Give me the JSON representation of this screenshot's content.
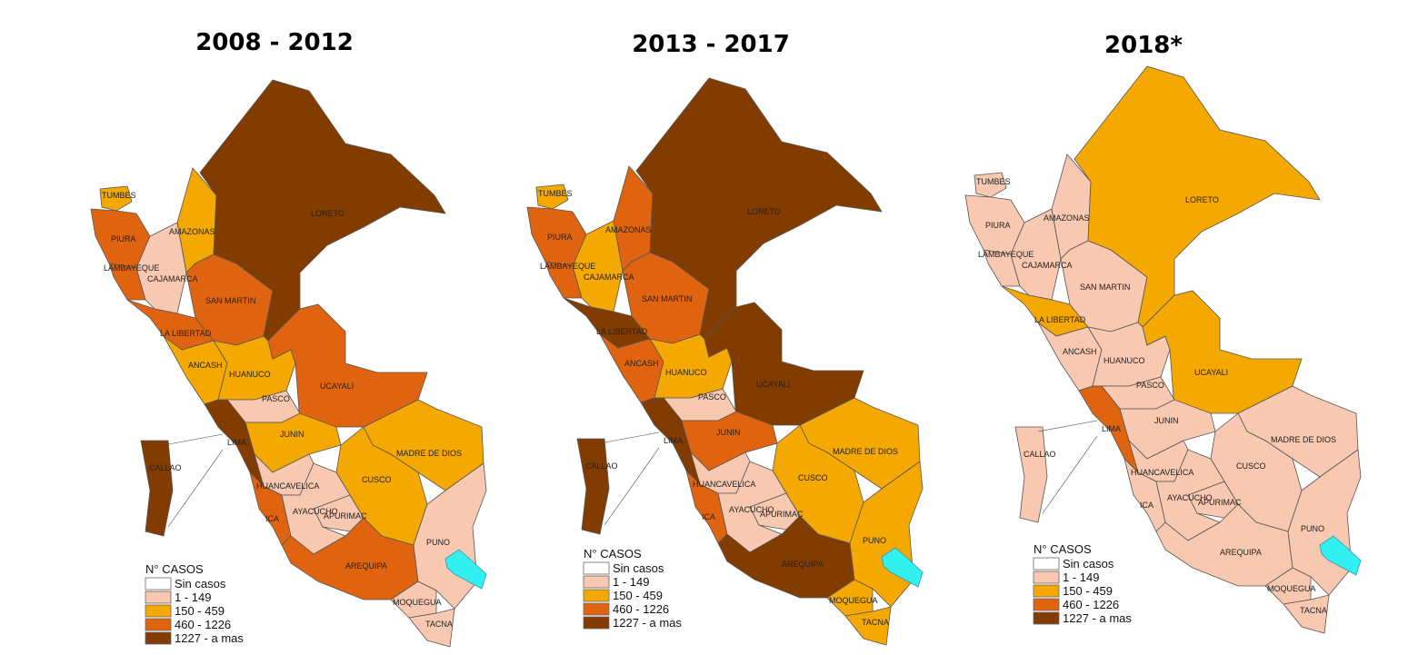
{
  "maps": [
    {
      "title": "2008 - 2012",
      "legend": {
        "title": "N° CASOS",
        "items": [
          {
            "label": "Sin casos",
            "color": "#ffffff"
          },
          {
            "label": "1 - 149",
            "color": "#f8c8b0"
          },
          {
            "label": "150 - 459",
            "color": "#f5a800"
          },
          {
            "label": "460 - 1226",
            "color": "#e0640f"
          },
          {
            "label": "1227 - a mas",
            "color": "#833c00"
          }
        ]
      },
      "regions": [
        {
          "name": "TUMBES",
          "color": "#f5a800"
        },
        {
          "name": "PIURA",
          "color": "#e0640f"
        },
        {
          "name": "LAMBAYEQUE",
          "color": "#e0640f"
        },
        {
          "name": "CAJAMARCA",
          "color": "#f8c8b0"
        },
        {
          "name": "AMAZONAS",
          "color": "#f5a800"
        },
        {
          "name": "LA LIBERTAD",
          "color": "#e0640f"
        },
        {
          "name": "SAN MARTIN",
          "color": "#e0640f"
        },
        {
          "name": "LORETO",
          "color": "#833c00"
        },
        {
          "name": "ANCASH",
          "color": "#f5a800"
        },
        {
          "name": "HUANUCO",
          "color": "#f5a800"
        },
        {
          "name": "UCAYALI",
          "color": "#e0640f"
        },
        {
          "name": "PASCO",
          "color": "#f8c8b0"
        },
        {
          "name": "LIMA",
          "color": "#833c00"
        },
        {
          "name": "JUNIN",
          "color": "#f5a800"
        },
        {
          "name": "MADRE DE DIOS",
          "color": "#f5a800"
        },
        {
          "name": "CUSCO",
          "color": "#f5a800"
        },
        {
          "name": "HUANCAVELICA",
          "color": "#f8c8b0"
        },
        {
          "name": "ICA",
          "color": "#e0640f"
        },
        {
          "name": "AYACUCHO",
          "color": "#f8c8b0"
        },
        {
          "name": "APURIMAC",
          "color": "#f8c8b0"
        },
        {
          "name": "AREQUIPA",
          "color": "#e0640f"
        },
        {
          "name": "PUNO",
          "color": "#f8c8b0"
        },
        {
          "name": "MOQUEGUA",
          "color": "#f8c8b0"
        },
        {
          "name": "TACNA",
          "color": "#f8c8b0"
        },
        {
          "name": "CALLAO",
          "color": "#833c00"
        }
      ]
    },
    {
      "title": "2013 - 2017",
      "legend": {
        "title": "N° CASOS",
        "items": [
          {
            "label": "Sin casos",
            "color": "#ffffff"
          },
          {
            "label": "1 - 149",
            "color": "#f8c8b0"
          },
          {
            "label": "150 - 459",
            "color": "#f5a800"
          },
          {
            "label": "460 - 1226",
            "color": "#e0640f"
          },
          {
            "label": "1227 - a mas",
            "color": "#833c00"
          }
        ]
      },
      "regions": [
        {
          "name": "TUMBES",
          "color": "#f5a800"
        },
        {
          "name": "PIURA",
          "color": "#e0640f"
        },
        {
          "name": "LAMBAYEQUE",
          "color": "#e0640f"
        },
        {
          "name": "CAJAMARCA",
          "color": "#f5a800"
        },
        {
          "name": "AMAZONAS",
          "color": "#e0640f"
        },
        {
          "name": "LA LIBERTAD",
          "color": "#833c00"
        },
        {
          "name": "SAN MARTIN",
          "color": "#e0640f"
        },
        {
          "name": "LORETO",
          "color": "#833c00"
        },
        {
          "name": "ANCASH",
          "color": "#e0640f"
        },
        {
          "name": "HUANUCO",
          "color": "#f5a800"
        },
        {
          "name": "UCAYALI",
          "color": "#833c00"
        },
        {
          "name": "PASCO",
          "color": "#f8c8b0"
        },
        {
          "name": "LIMA",
          "color": "#833c00"
        },
        {
          "name": "JUNIN",
          "color": "#e0640f"
        },
        {
          "name": "MADRE DE DIOS",
          "color": "#f5a800"
        },
        {
          "name": "CUSCO",
          "color": "#f5a800"
        },
        {
          "name": "HUANCAVELICA",
          "color": "#f8c8b0"
        },
        {
          "name": "ICA",
          "color": "#e0640f"
        },
        {
          "name": "AYACUCHO",
          "color": "#f8c8b0"
        },
        {
          "name": "APURIMAC",
          "color": "#f8c8b0"
        },
        {
          "name": "AREQUIPA",
          "color": "#833c00"
        },
        {
          "name": "PUNO",
          "color": "#f5a800"
        },
        {
          "name": "MOQUEGUA",
          "color": "#f5a800"
        },
        {
          "name": "TACNA",
          "color": "#f5a800"
        },
        {
          "name": "CALLAO",
          "color": "#833c00"
        }
      ]
    },
    {
      "title": "2018*",
      "legend": {
        "title": "N° CASOS",
        "items": [
          {
            "label": "Sin casos",
            "color": "#ffffff"
          },
          {
            "label": "1 - 149",
            "color": "#f8c8b0"
          },
          {
            "label": "150 - 459",
            "color": "#f5a800"
          },
          {
            "label": "460 - 1226",
            "color": "#e0640f"
          },
          {
            "label": "1227 - a mas",
            "color": "#833c00"
          }
        ]
      },
      "regions": [
        {
          "name": "TUMBES",
          "color": "#f8c8b0"
        },
        {
          "name": "PIURA",
          "color": "#f8c8b0"
        },
        {
          "name": "LAMBAYEQUE",
          "color": "#f8c8b0"
        },
        {
          "name": "CAJAMARCA",
          "color": "#f8c8b0"
        },
        {
          "name": "AMAZONAS",
          "color": "#f8c8b0"
        },
        {
          "name": "LA LIBERTAD",
          "color": "#f5a800"
        },
        {
          "name": "SAN MARTIN",
          "color": "#f8c8b0"
        },
        {
          "name": "LORETO",
          "color": "#f5a800"
        },
        {
          "name": "ANCASH",
          "color": "#f8c8b0"
        },
        {
          "name": "HUANUCO",
          "color": "#f8c8b0"
        },
        {
          "name": "UCAYALI",
          "color": "#f5a800"
        },
        {
          "name": "PASCO",
          "color": "#f8c8b0"
        },
        {
          "name": "LIMA",
          "color": "#e0640f"
        },
        {
          "name": "JUNIN",
          "color": "#f8c8b0"
        },
        {
          "name": "MADRE DE DIOS",
          "color": "#f8c8b0"
        },
        {
          "name": "CUSCO",
          "color": "#f8c8b0"
        },
        {
          "name": "HUANCAVELICA",
          "color": "#f8c8b0"
        },
        {
          "name": "ICA",
          "color": "#f8c8b0"
        },
        {
          "name": "AYACUCHO",
          "color": "#f8c8b0"
        },
        {
          "name": "APURIMAC",
          "color": "#f8c8b0"
        },
        {
          "name": "AREQUIPA",
          "color": "#f8c8b0"
        },
        {
          "name": "PUNO",
          "color": "#f8c8b0"
        },
        {
          "name": "MOQUEGUA",
          "color": "#f8c8b0"
        },
        {
          "name": "TACNA",
          "color": "#f8c8b0"
        },
        {
          "name": "CALLAO",
          "color": "#f8c8b0"
        }
      ]
    }
  ]
}
